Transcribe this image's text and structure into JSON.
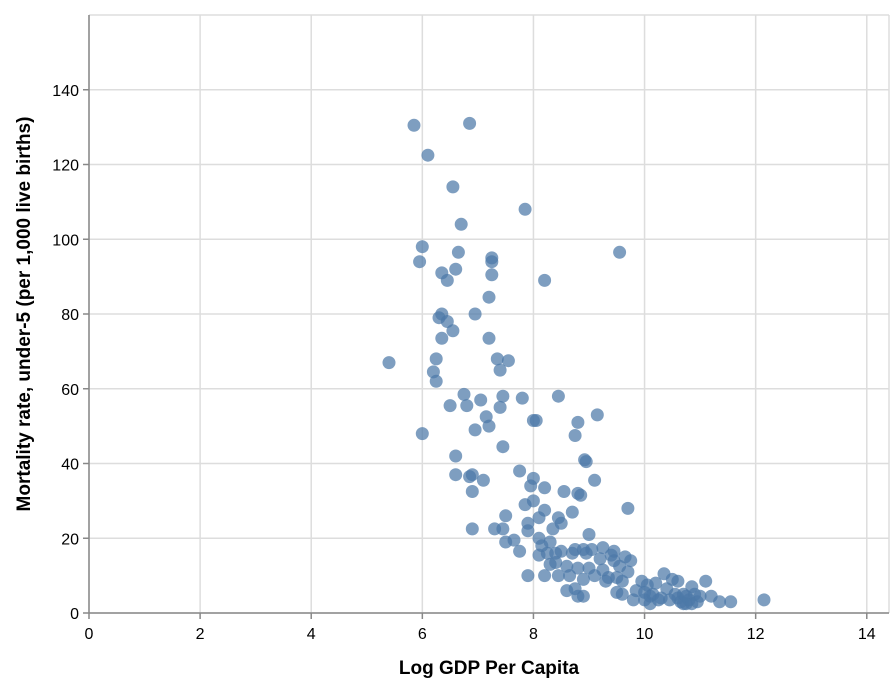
{
  "chart_data": {
    "type": "scatter",
    "xlabel": "Log GDP Per Capita",
    "ylabel": "Mortality rate, under-5 (per 1,000 live births)",
    "xlim": [
      0,
      14.4
    ],
    "ylim": [
      0,
      160
    ],
    "xticks": [
      0,
      2,
      4,
      6,
      8,
      10,
      12,
      14
    ],
    "yticks": [
      0,
      20,
      40,
      60,
      80,
      100,
      120,
      140
    ],
    "grid": true,
    "point_color": "#4c78a8",
    "points": [
      [
        5.4,
        67
      ],
      [
        5.85,
        130.5
      ],
      [
        5.95,
        94
      ],
      [
        6.0,
        98
      ],
      [
        6.0,
        48
      ],
      [
        6.1,
        122.5
      ],
      [
        6.2,
        64.5
      ],
      [
        6.25,
        68
      ],
      [
        6.25,
        62
      ],
      [
        6.3,
        79
      ],
      [
        6.35,
        80
      ],
      [
        6.35,
        73.5
      ],
      [
        6.35,
        91
      ],
      [
        6.45,
        89
      ],
      [
        6.45,
        78
      ],
      [
        6.5,
        55.5
      ],
      [
        6.55,
        75.5
      ],
      [
        6.55,
        114
      ],
      [
        6.6,
        92
      ],
      [
        6.6,
        42
      ],
      [
        6.6,
        37
      ],
      [
        6.65,
        96.5
      ],
      [
        6.7,
        104
      ],
      [
        6.75,
        58.5
      ],
      [
        6.8,
        55.5
      ],
      [
        6.85,
        131
      ],
      [
        6.85,
        36.5
      ],
      [
        6.9,
        37
      ],
      [
        6.9,
        32.5
      ],
      [
        6.9,
        22.5
      ],
      [
        6.95,
        80
      ],
      [
        6.95,
        49
      ],
      [
        7.05,
        57
      ],
      [
        7.1,
        35.5
      ],
      [
        7.15,
        52.5
      ],
      [
        7.2,
        84.5
      ],
      [
        7.2,
        73.5
      ],
      [
        7.2,
        50
      ],
      [
        7.25,
        94
      ],
      [
        7.25,
        95
      ],
      [
        7.25,
        90.5
      ],
      [
        7.3,
        22.5
      ],
      [
        7.35,
        68
      ],
      [
        7.4,
        65
      ],
      [
        7.4,
        55
      ],
      [
        7.45,
        58
      ],
      [
        7.45,
        44.5
      ],
      [
        7.45,
        22.5
      ],
      [
        7.5,
        26
      ],
      [
        7.5,
        19
      ],
      [
        7.55,
        67.5
      ],
      [
        7.65,
        19.5
      ],
      [
        7.75,
        38
      ],
      [
        7.75,
        16.5
      ],
      [
        7.8,
        57.5
      ],
      [
        7.85,
        108
      ],
      [
        7.85,
        29
      ],
      [
        7.9,
        24
      ],
      [
        7.9,
        22
      ],
      [
        7.9,
        10
      ],
      [
        7.95,
        34
      ],
      [
        8.0,
        51.5
      ],
      [
        8.0,
        36
      ],
      [
        8.0,
        30
      ],
      [
        8.05,
        51.5
      ],
      [
        8.1,
        25.5
      ],
      [
        8.1,
        20
      ],
      [
        8.1,
        15.5
      ],
      [
        8.15,
        18
      ],
      [
        8.2,
        89
      ],
      [
        8.2,
        33.5
      ],
      [
        8.2,
        27.5
      ],
      [
        8.2,
        10
      ],
      [
        8.25,
        16
      ],
      [
        8.3,
        19
      ],
      [
        8.3,
        13
      ],
      [
        8.35,
        22.5
      ],
      [
        8.4,
        16
      ],
      [
        8.4,
        13.5
      ],
      [
        8.45,
        58
      ],
      [
        8.45,
        25.5
      ],
      [
        8.45,
        10
      ],
      [
        8.5,
        24
      ],
      [
        8.5,
        16.5
      ],
      [
        8.55,
        32.5
      ],
      [
        8.6,
        6
      ],
      [
        8.6,
        12.5
      ],
      [
        8.65,
        10
      ],
      [
        8.7,
        27
      ],
      [
        8.7,
        16
      ],
      [
        8.75,
        47.5
      ],
      [
        8.75,
        17
      ],
      [
        8.75,
        6.5
      ],
      [
        8.8,
        51
      ],
      [
        8.8,
        32
      ],
      [
        8.8,
        12
      ],
      [
        8.8,
        4.5
      ],
      [
        8.85,
        31.5
      ],
      [
        8.9,
        17
      ],
      [
        8.9,
        9
      ],
      [
        8.9,
        4.5
      ],
      [
        8.92,
        41
      ],
      [
        8.95,
        40.5
      ],
      [
        8.95,
        16
      ],
      [
        9.0,
        21
      ],
      [
        9.0,
        12
      ],
      [
        9.05,
        17
      ],
      [
        9.1,
        35.5
      ],
      [
        9.1,
        10
      ],
      [
        9.15,
        53
      ],
      [
        9.2,
        14.5
      ],
      [
        9.25,
        17.5
      ],
      [
        9.25,
        11.5
      ],
      [
        9.3,
        8.5
      ],
      [
        9.35,
        9.5
      ],
      [
        9.4,
        15.5
      ],
      [
        9.45,
        16.5
      ],
      [
        9.45,
        14
      ],
      [
        9.5,
        9.5
      ],
      [
        9.5,
        5.5
      ],
      [
        9.55,
        96.5
      ],
      [
        9.55,
        12.5
      ],
      [
        9.6,
        8.5
      ],
      [
        9.6,
        5
      ],
      [
        9.65,
        15
      ],
      [
        9.7,
        28
      ],
      [
        9.7,
        11
      ],
      [
        9.75,
        14
      ],
      [
        9.8,
        3.5
      ],
      [
        9.85,
        6
      ],
      [
        9.95,
        8.5
      ],
      [
        10.0,
        5.5
      ],
      [
        10.0,
        3.5
      ],
      [
        10.05,
        7.5
      ],
      [
        10.1,
        4.5
      ],
      [
        10.1,
        2.5
      ],
      [
        10.15,
        5
      ],
      [
        10.2,
        8
      ],
      [
        10.25,
        3.5
      ],
      [
        10.3,
        4
      ],
      [
        10.35,
        10.5
      ],
      [
        10.4,
        6.5
      ],
      [
        10.45,
        3.5
      ],
      [
        10.5,
        9
      ],
      [
        10.55,
        5
      ],
      [
        10.6,
        4
      ],
      [
        10.6,
        8.5
      ],
      [
        10.65,
        3
      ],
      [
        10.7,
        5
      ],
      [
        10.7,
        2.5
      ],
      [
        10.75,
        4.5
      ],
      [
        10.75,
        2.5
      ],
      [
        10.8,
        3.5
      ],
      [
        10.85,
        7
      ],
      [
        10.85,
        2.5
      ],
      [
        10.9,
        5
      ],
      [
        10.95,
        3
      ],
      [
        11.0,
        4.5
      ],
      [
        11.1,
        8.5
      ],
      [
        11.2,
        4.5
      ],
      [
        11.35,
        3
      ],
      [
        11.55,
        3
      ],
      [
        12.15,
        3.5
      ]
    ]
  }
}
